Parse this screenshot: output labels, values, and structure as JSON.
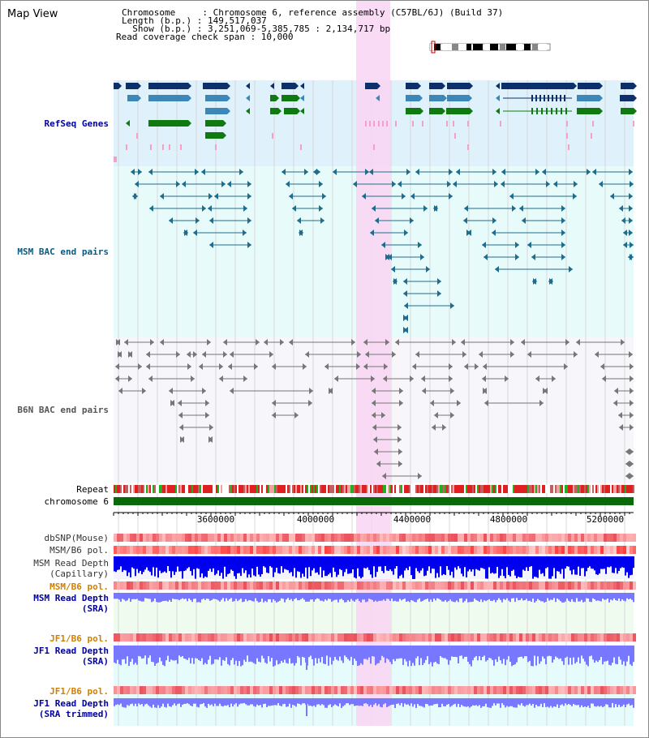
{
  "view": {
    "title": "Map View",
    "chromosome_line": "Chromosome     : Chromosome 6, reference assembly (C57BL/6J) (Build 37)",
    "length_line": "Length (b.p.) : 149,517,037",
    "show_line": "  Show (b.p.) : 3,251,069-5,385,785 : 2,134,717 bp",
    "coverage_line": "Read coverage check span : 10,000"
  },
  "tracks": {
    "refseq": "RefSeq Genes",
    "msm_bac": "MSM BAC end pairs",
    "b6n_bac": "B6N BAC end pairs",
    "repeat": "Repeat",
    "chromosome": "chromosome 6",
    "dbsnp": "dbSNP(Mouse)",
    "msm_b6_pol_1": "MSM/B6 pol.",
    "msm_depth_cap": "MSM Read Depth\n(Capillary)",
    "msm_b6_pol_2": "MSM/B6 pol.",
    "msm_depth_sra": "MSM Read Depth\n(SRA)",
    "jf1_b6_pol_1": "JF1/B6 pol.",
    "jf1_depth_sra": "JF1 Read Depth\n(SRA)",
    "jf1_b6_pol_2": "JF1/B6 pol.",
    "jf1_depth_trim": "JF1 Read Depth\n(SRA trimmed)"
  },
  "axis": {
    "ticks": [
      "3600000",
      "4000000",
      "4400000",
      "4800000",
      "5200000"
    ]
  },
  "colors": {
    "refseq_bg": "#dff1fb",
    "msm_bg": "#e8fbfb",
    "b6n_bg": "#f6f6fb",
    "highlight": "#f9d5f3",
    "gene_dark": "#0d2f6a",
    "gene_mid": "#3c87b8",
    "gene_green": "#0f7a0f",
    "bac_teal": "#1f6c8c",
    "bac_gray": "#666666",
    "chrom_green": "#0a6a0a",
    "depth_blue": "#0000ee",
    "depth_light": "#7777ff",
    "label_blue": "#0000a0",
    "label_orange": "#d08000"
  }
}
